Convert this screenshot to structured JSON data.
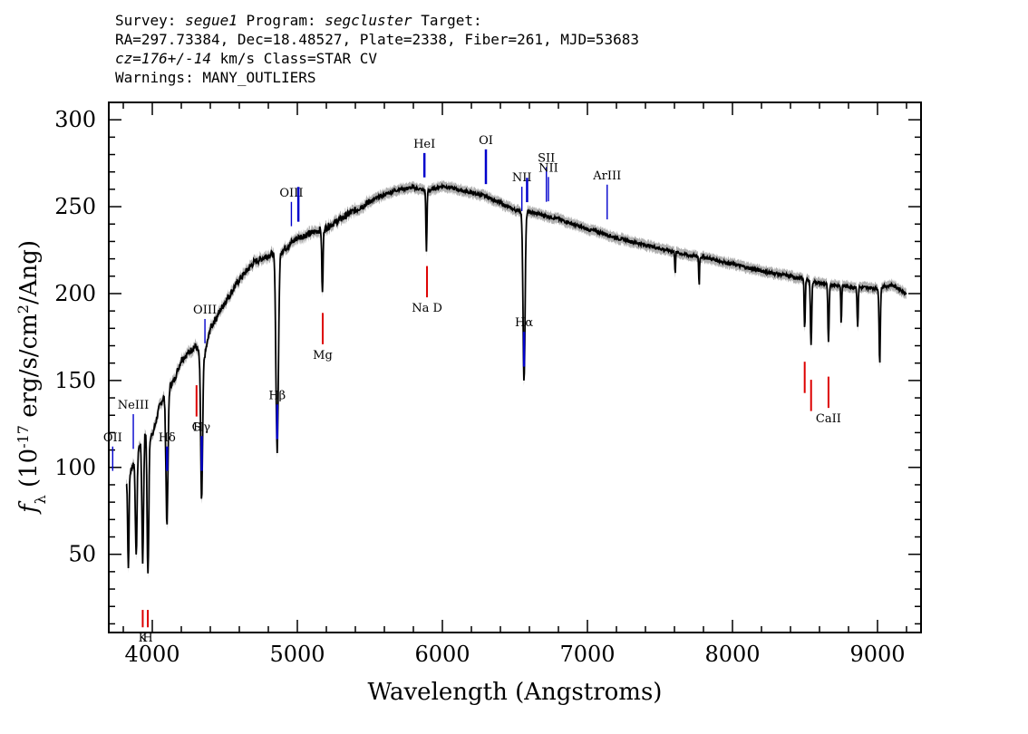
{
  "header": {
    "survey_label": "Survey:",
    "survey": "segue1",
    "program_label": "Program:",
    "program": "segcluster",
    "target_label": "Target:",
    "coords": "RA=297.73384, Dec=18.48527, Plate=2338, Fiber=261, MJD=53683",
    "cz": "cz=176+/-14",
    "cz_units": "km/s Class=STAR CV",
    "warnings": "Warnings: MANY_OUTLIERS"
  },
  "chart_data": {
    "type": "line",
    "xlabel": "Wavelength (Angstroms)",
    "ylabel": "f_λ (10^-17 erg/s/cm^2/Ang)",
    "xlim": [
      3700,
      9300
    ],
    "ylim": [
      5,
      310
    ],
    "x_ticks": [
      4000,
      5000,
      6000,
      7000,
      8000,
      9000
    ],
    "y_ticks": [
      50,
      100,
      150,
      200,
      250,
      300
    ],
    "colors": {
      "spectrum": "#000000",
      "error": "#b0b0b0",
      "emission": "#0000cc",
      "absorption": "#dd0000"
    },
    "continuum": [
      [
        3820,
        90
      ],
      [
        3900,
        110
      ],
      [
        3950,
        120
      ],
      [
        4000,
        118
      ],
      [
        4050,
        135
      ],
      [
        4100,
        145
      ],
      [
        4150,
        150
      ],
      [
        4200,
        162
      ],
      [
        4300,
        170
      ],
      [
        4350,
        160
      ],
      [
        4400,
        180
      ],
      [
        4500,
        195
      ],
      [
        4600,
        208
      ],
      [
        4700,
        218
      ],
      [
        4800,
        222
      ],
      [
        4900,
        225
      ],
      [
        5000,
        232
      ],
      [
        5100,
        235
      ],
      [
        5200,
        238
      ],
      [
        5300,
        243
      ],
      [
        5400,
        248
      ],
      [
        5500,
        253
      ],
      [
        5600,
        257
      ],
      [
        5700,
        260
      ],
      [
        5800,
        261
      ],
      [
        5900,
        259
      ],
      [
        6000,
        262
      ],
      [
        6100,
        260
      ],
      [
        6200,
        258
      ],
      [
        6300,
        256
      ],
      [
        6400,
        252
      ],
      [
        6500,
        248
      ],
      [
        6600,
        247
      ],
      [
        6700,
        245
      ],
      [
        6800,
        243
      ],
      [
        6900,
        240
      ],
      [
        7000,
        237
      ],
      [
        7100,
        235
      ],
      [
        7200,
        232
      ],
      [
        7300,
        230
      ],
      [
        7400,
        228
      ],
      [
        7500,
        226
      ],
      [
        7600,
        224
      ],
      [
        7700,
        222
      ],
      [
        7800,
        221
      ],
      [
        7900,
        219
      ],
      [
        8000,
        217
      ],
      [
        8200,
        213
      ],
      [
        8400,
        210
      ],
      [
        8600,
        206
      ],
      [
        8800,
        204
      ],
      [
        9000,
        203
      ],
      [
        9100,
        205
      ],
      [
        9200,
        200
      ]
    ],
    "absorption_features": [
      [
        3835,
        42,
        6
      ],
      [
        3889,
        48,
        8
      ],
      [
        3934,
        46,
        8
      ],
      [
        3970,
        38,
        8
      ],
      [
        4101,
        68,
        10
      ],
      [
        4340,
        80,
        9
      ],
      [
        4861,
        110,
        12
      ],
      [
        5173,
        200,
        6
      ],
      [
        5890,
        225,
        5
      ],
      [
        6563,
        150,
        10
      ],
      [
        7605,
        212,
        4
      ],
      [
        7770,
        205,
        4
      ],
      [
        8498,
        180,
        5
      ],
      [
        8542,
        170,
        6
      ],
      [
        8662,
        172,
        6
      ],
      [
        8750,
        182,
        4
      ],
      [
        8863,
        180,
        5
      ],
      [
        9015,
        160,
        6
      ]
    ],
    "emission_lines": [
      {
        "label": "OII",
        "x": 3727
      },
      {
        "label": "NeIII",
        "x": 3869
      },
      {
        "label": "Hδ",
        "x": 4102
      },
      {
        "label": "Hγ",
        "x": 4341
      },
      {
        "label": "OIII",
        "x": 4363
      },
      {
        "label": "Hβ",
        "x": 4861
      },
      {
        "label": "OIII",
        "x": 4959
      },
      {
        "label": "",
        "x": 5007
      },
      {
        "label": "HeI",
        "x": 5876
      },
      {
        "label": "OI",
        "x": 6300
      },
      {
        "label": "NII",
        "x": 6548
      },
      {
        "label": "Hα",
        "x": 6563
      },
      {
        "label": "",
        "x": 6584
      },
      {
        "label": "SII",
        "x": 6717
      },
      {
        "label": "NII",
        "x": 6731
      },
      {
        "label": "ArIII",
        "x": 7136
      }
    ],
    "absorption_lines": [
      {
        "label": "K",
        "x": 3934
      },
      {
        "label": "H",
        "x": 3969
      },
      {
        "label": "G",
        "x": 4305
      },
      {
        "label": "Mg",
        "x": 5175
      },
      {
        "label": "Na D",
        "x": 5894
      },
      {
        "label": "",
        "x": 8498
      },
      {
        "label": "",
        "x": 8542
      },
      {
        "label": "CaII",
        "x": 8662
      }
    ]
  }
}
